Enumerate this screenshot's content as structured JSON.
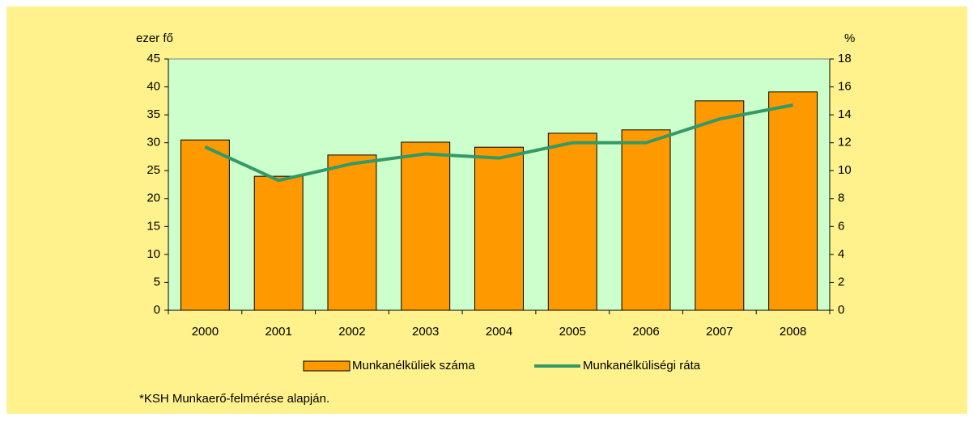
{
  "chart_data": {
    "type": "bar_line",
    "y_label": "ezer fő",
    "y2_label": "%",
    "categories": [
      "2000",
      "2001",
      "2002",
      "2003",
      "2004",
      "2005",
      "2006",
      "2007",
      "2008"
    ],
    "series": [
      {
        "name": "Munkanélküliek száma",
        "type": "bar",
        "color": "#ff9900",
        "values": [
          30.5,
          24.0,
          27.8,
          30.1,
          29.2,
          31.7,
          32.3,
          37.5,
          39.1
        ]
      },
      {
        "name": "Munkanélküliségi ráta",
        "type": "line",
        "axis": "y2",
        "color": "#339966",
        "values": [
          11.7,
          9.3,
          10.5,
          11.2,
          10.9,
          12.0,
          12.0,
          13.7,
          14.7
        ]
      }
    ],
    "ylim": [
      0,
      45
    ],
    "yticks": [
      0,
      5,
      10,
      15,
      20,
      25,
      30,
      35,
      40,
      45
    ],
    "y2lim": [
      0,
      18
    ],
    "y2ticks": [
      0,
      2,
      4,
      6,
      8,
      10,
      12,
      14,
      16,
      18
    ],
    "note": "*KSH Munkaerő-felmérése alapján."
  }
}
